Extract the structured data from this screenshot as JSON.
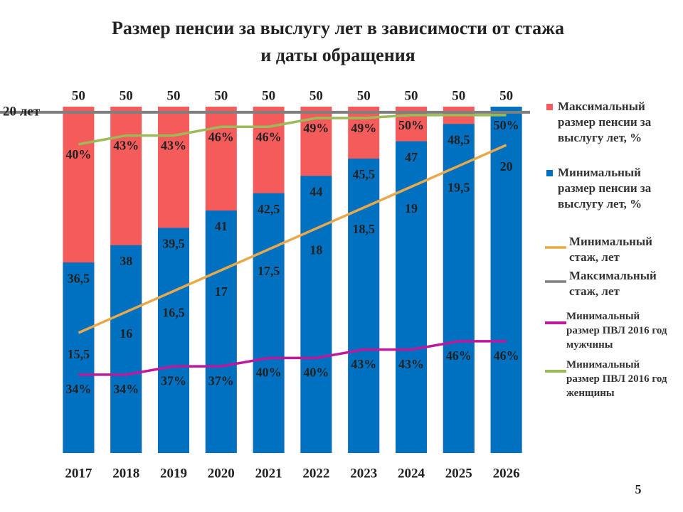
{
  "chart_data": {
    "type": "bar-line",
    "title": "Размер пенсии за выслугу лет в зависимости от стажа",
    "subtitle": "и даты обращения",
    "page_number": "5",
    "categories": [
      "2017",
      "2018",
      "2019",
      "2020",
      "2021",
      "2022",
      "2023",
      "2024",
      "2025",
      "2026"
    ],
    "ylim": [
      20,
      50
    ],
    "y2lim": [
      12.62,
      20.92
    ],
    "y3lim": [
      0,
      20.33
    ],
    "y4lim": [
      5.9,
      130.2
    ],
    "y5lim": [
      -65.9,
      52.9
    ],
    "legend": "right",
    "series": [
      {
        "name": "Максимальный размер пенсии за выслугу лет, %",
        "kind": "bar",
        "color": "#f45b5b",
        "values": [
          50,
          50,
          50,
          50,
          50,
          50,
          50,
          50,
          50,
          50
        ]
      },
      {
        "name": "Минимальный размер пенсии за выслугу лет, %",
        "kind": "bar",
        "color": "#0070c0",
        "values": [
          36.5,
          38,
          39.5,
          41,
          42.5,
          44,
          45.5,
          47,
          48.5,
          50
        ],
        "value_labels": [
          "36,5",
          "38",
          "39,5",
          "41",
          "42,5",
          "44",
          "45,5",
          "47",
          "48,5",
          null
        ]
      },
      {
        "name": "Минимальный стаж, лет",
        "kind": "line",
        "axis": "y2",
        "color": "#e8a94a",
        "values": [
          15.5,
          16,
          16.5,
          17,
          17.5,
          18,
          18.5,
          19,
          19.5,
          20
        ],
        "value_labels": [
          "15,5",
          "16",
          "16,5",
          "17",
          "17,5",
          "18",
          "18,5",
          "19",
          "19,5",
          "20"
        ]
      },
      {
        "name": "Максимальный стаж, лет",
        "kind": "line",
        "axis": "y3",
        "color": "#7f7f7f",
        "values": [
          20,
          20,
          20,
          20,
          20,
          20,
          20,
          20,
          20,
          20
        ],
        "label": "20 лет"
      },
      {
        "name": "Минимальный размер ПВЛ 2016 год мужчины",
        "kind": "line",
        "axis": "y4",
        "color": "#c0189c",
        "values": [
          34,
          34,
          37,
          37,
          40,
          40,
          43,
          43,
          46,
          46
        ],
        "value_labels": [
          "34%",
          "34%",
          "37%",
          "37%",
          "40%",
          "40%",
          "43%",
          "43%",
          "46%",
          "46%"
        ]
      },
      {
        "name": "Минимальный размер ПВЛ 2016 год женщины",
        "kind": "line",
        "axis": "y5",
        "color": "#9bbb59",
        "values": [
          40,
          43,
          43,
          46,
          46,
          49,
          49,
          50,
          50,
          50
        ],
        "value_labels": [
          "40%",
          "43%",
          "43%",
          "46%",
          "46%",
          "49%",
          "49%",
          "50%",
          null,
          "50%"
        ]
      }
    ]
  }
}
